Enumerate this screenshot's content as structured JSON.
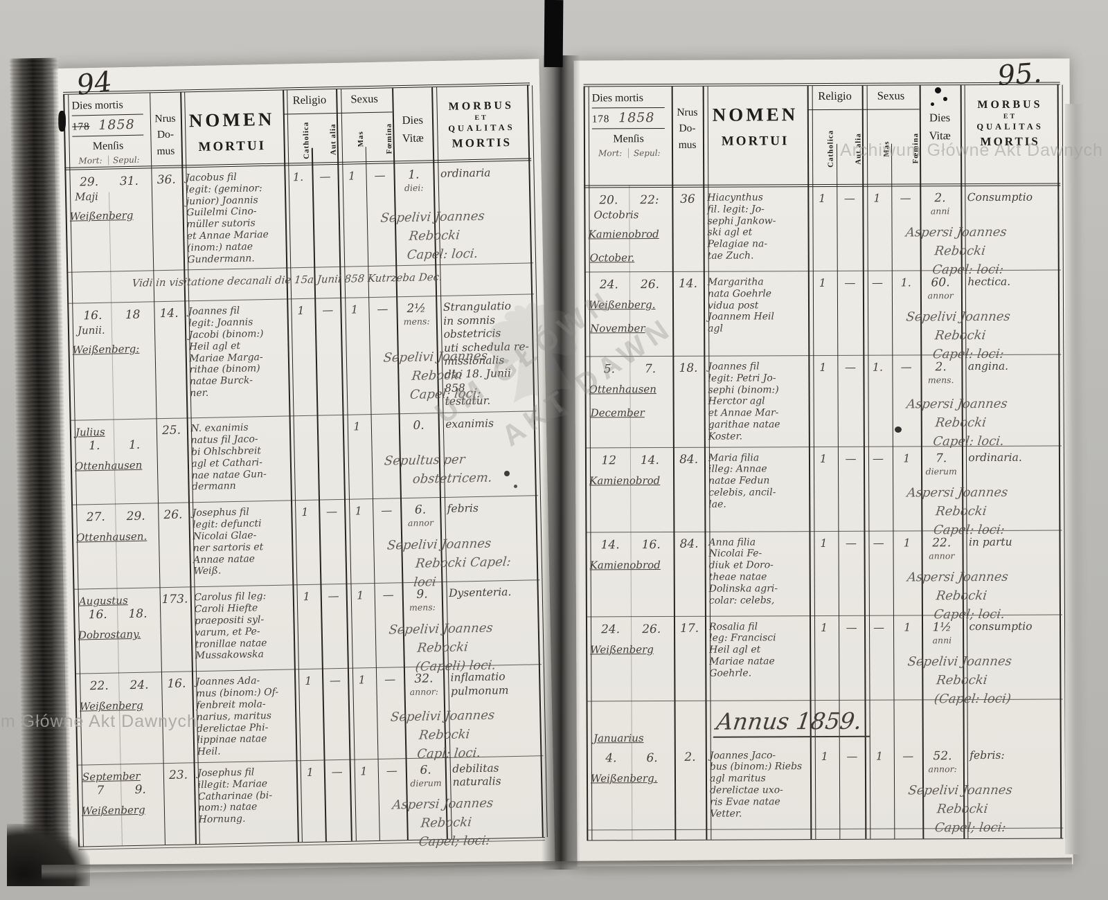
{
  "watermarks": {
    "archive_text": "Archiwum Główne Akt Dawnych",
    "stamp_line1": "UM GŁÓWN",
    "stamp_line2": "AKT DAWN"
  },
  "header_labels": {
    "dies_mortis": "Dies mortis",
    "year_printed": "178",
    "year_hand": "1858",
    "mensis": "Menſis",
    "mort": "Mort:",
    "sepul": "Sepul:",
    "nrus1": "Nrus",
    "nrus2": "Do-",
    "nrus3": "mus",
    "nomen1": "NOMEN",
    "nomen2": "MORTUI",
    "religio": "Religio",
    "catholica": "Catholica",
    "aut_alia": "Aut alia",
    "sexus": "Sexus",
    "mas": "Mas",
    "foemina": "Fœmina",
    "dies1": "Dies",
    "dies2": "Vitæ",
    "morbus1": "MORBUS",
    "morbus2": "ET",
    "morbus3": "QUALITAS",
    "morbus4": "MORTIS"
  },
  "left_page": {
    "page_number": "94",
    "rows": [
      {
        "type": "entry",
        "d1": "29.",
        "d2": "31.",
        "month": "Maji",
        "place": "Weißenberg",
        "house": "36.",
        "name": "Jacobus fil\nlegit: (geminor:\njunior) Joannis\nGuilelmi Cino-\nmüller sutoris\net Annae Mariae\n(inom:) natae\nGundermann.",
        "cath": "1.",
        "alia": "—",
        "mas": "1",
        "fem": "—",
        "vitae": "1.",
        "vitae_unit": "diei:",
        "morbus": "ordinaria",
        "burial": "Sepelivi Joannes Rebocki\nCapel: loci."
      },
      {
        "type": "note",
        "text": "Vidi in visitatione decanali die 15a Junii 858 Kutrzeba Dec."
      },
      {
        "type": "entry",
        "d1": "16.",
        "d2": "18",
        "month": "Junii.",
        "place": "Weißenberg:",
        "house": "14.",
        "name": "Joannes fil\nlegit: Joannis\nJacobi (binom:)\nHeil agl et\nMariae Marga-\nrithae (binom)\nnatae Burck-\nner.",
        "cath": "1",
        "alia": "—",
        "mas": "1",
        "fem": "—",
        "vitae": "2½",
        "vitae_unit": "mens:",
        "morbus": "Strangulatio\nin somnis\nobstetricis\nuti schedula re-\nmissionalis\ndto 18. Junii 858\ntestatur.",
        "burial": "Sepelivi Joannes Rebocki\nCapel: loci:"
      },
      {
        "type": "entry",
        "month_top": "Julius",
        "d1": "1.",
        "d2": "1.",
        "place": "Ottenhausen",
        "house": "25.",
        "name": "N. exanimis\nnatus fil Jaco-\nbi Ohlschbreit\nagl et Cathari-\nnae natae Gun-\ndermann",
        "cath": "",
        "alia": "",
        "mas": "1",
        "fem": "",
        "vitae": "0.",
        "vitae_unit": "",
        "morbus": "exanimis",
        "burial": "Sepultus per obstetricem."
      },
      {
        "type": "entry",
        "d1": "27.",
        "d2": "29.",
        "place": "Ottenhausen.",
        "house": "26.",
        "name": "Josephus fil\nlegit: defuncti\nNicolai Glae-\nner sartoris et\nAnnae natae\nWeiß.",
        "cath": "1",
        "alia": "—",
        "mas": "1",
        "fem": "—",
        "vitae": "6.",
        "vitae_unit": "annor",
        "morbus": "febris",
        "burial": "Sepelivi Joannes Rebocki Capel: loci"
      },
      {
        "type": "entry",
        "month_top": "Augustus",
        "d1": "16.",
        "d2": "18.",
        "place": "Dobrostany.",
        "house": "173.",
        "name": "Carolus fil leg:\nCaroli Hiefte\npraepositi syl-\nvarum, et Pe-\ntronillae natae\nMussakowska",
        "cath": "1",
        "alia": "—",
        "mas": "1",
        "fem": "—",
        "vitae": "9.",
        "vitae_unit": "mens:",
        "morbus": "Dysenteria.",
        "burial": "Sepelivi Joannes Rebocki\n(Capeli) loci."
      },
      {
        "type": "entry",
        "d1": "22.",
        "d2": "24.",
        "place": "Weißenberg",
        "house": "16.",
        "name": "Joannes Ada-\nmus (binom:) Of-\nfenbreit mola-\nnarius, maritus\nderelictae Phi-\nlippinae natae\nHeil.",
        "cath": "1",
        "alia": "—",
        "mas": "1",
        "fem": "—",
        "vitae": "32.",
        "vitae_unit": "annor:",
        "morbus": "inflamatio\npulmonum",
        "burial": "Sepelivi Joannes Rebocki\nCapl; loci."
      },
      {
        "type": "entry",
        "month_top": "September",
        "d1": "7",
        "d2": "9.",
        "place": "Weißenberg",
        "house": "23.",
        "name": "Josephus fil\nillegit: Mariae\nCatharinae (bi-\nnom:) natae\nHornung.",
        "cath": "1",
        "alia": "—",
        "mas": "1",
        "fem": "—",
        "vitae": "6.",
        "vitae_unit": "dierum",
        "morbus": "debilitas\nnaturalis",
        "burial": "Aspersi Joannes Rebocki\nCapel; loci:"
      }
    ]
  },
  "right_page": {
    "page_number": "95.",
    "rows": [
      {
        "type": "entry",
        "d1": "20.",
        "d2": "22:",
        "month": "Octobris",
        "place": "Kamienobrod",
        "month_bottom": "October.",
        "house": "36",
        "name": "Hiacynthus\nfil. legit: Jo-\nsephi Jankow-\nski agl et\nPelagiae na-\ntae Zuch.",
        "cath": "1",
        "alia": "—",
        "mas": "1",
        "fem": "—",
        "vitae": "2.",
        "vitae_unit": "anni",
        "morbus": "Consumptio",
        "burial": "Aspersi Joannes Rebocki\nCapel: loci:"
      },
      {
        "type": "entry",
        "d1": "24.",
        "d2": "26.",
        "place": "Weißenberg.",
        "month_bottom": "November",
        "house": "14.",
        "name": "Margaritha\nnata Goehrle\nvidua post\nJoannem Heil\nagl",
        "cath": "1",
        "alia": "—",
        "mas": "—",
        "fem": "1.",
        "vitae": "60.",
        "vitae_unit": "annor",
        "morbus": "hectica.",
        "burial": "Sepelivi Joannes Rebocki\nCapel: loci:"
      },
      {
        "type": "entry",
        "d1": "5.",
        "d2": "7.",
        "place": "Ottenhausen",
        "month_bottom": "December",
        "house": "18.",
        "name": "Joannes fil\nlegit: Petri Jo-\nsephi (binom:)\nHerctor agl\net Annae Mar-\ngarithae natae\nKoster.",
        "cath": "1",
        "alia": "—",
        "mas": "1.",
        "fem": "—",
        "vitae": "2.",
        "vitae_unit": "mens.",
        "morbus": "angina.",
        "burial": "Aspersi Joannes Rebocki\nCapel: loci."
      },
      {
        "type": "entry",
        "d1": "12",
        "d2": "14.",
        "place": "Kamienobrod",
        "house": "84.",
        "name": "Maria filia\nilleg: Annae\nnatae Fedun\ncelebis, ancil-\nlae.",
        "cath": "1",
        "alia": "—",
        "mas": "—",
        "fem": "1",
        "vitae": "7.",
        "vitae_unit": "dierum",
        "morbus": "ordinaria.",
        "burial": "Aspersi Joannes Rebocki\nCapel: loci:"
      },
      {
        "type": "entry",
        "d1": "14.",
        "d2": "16.",
        "place": "Kamienobrod",
        "house": "84.",
        "name": "Anna filia\nNicolai Fe-\ndiuk et Doro-\ntheae natae\nDolinska agri-\ncolar: celebs,",
        "cath": "1",
        "alia": "—",
        "mas": "—",
        "fem": "1",
        "vitae": "22.",
        "vitae_unit": "annor",
        "morbus": "in partu",
        "burial": "Aspersi Joannes Rebocki\nCapel; loci."
      },
      {
        "type": "entry",
        "d1": "24.",
        "d2": "26.",
        "place": "Weißenberg",
        "house": "17.",
        "name": "Rosalia fil\nleg: Francisci\nHeil agl et\nMariae natae\nGoehrle.",
        "cath": "1",
        "alia": "—",
        "mas": "—",
        "fem": "1",
        "vitae": "1½",
        "vitae_unit": "anni",
        "morbus": "consumptio",
        "burial": "Sepelivi Joannes Rebocki\n(Capel: loci)"
      },
      {
        "type": "heading",
        "text": "Annus 1859.",
        "month_label": "Januarius"
      },
      {
        "type": "entry",
        "d1": "4.",
        "d2": "6.",
        "place": "Weißenberg.",
        "house": "2.",
        "name": "Joannes Jaco-\nbus (binom:) Riebs\nagl maritus\nderelictae uxo-\nris Evae natae\nVetter.",
        "cath": "1",
        "alia": "—",
        "mas": "1",
        "fem": "—",
        "vitae": "52.",
        "vitae_unit": "annor:",
        "morbus": "febris:",
        "burial": "Sepelivi Joannes Rebocki\nCapel; loci:"
      }
    ]
  }
}
